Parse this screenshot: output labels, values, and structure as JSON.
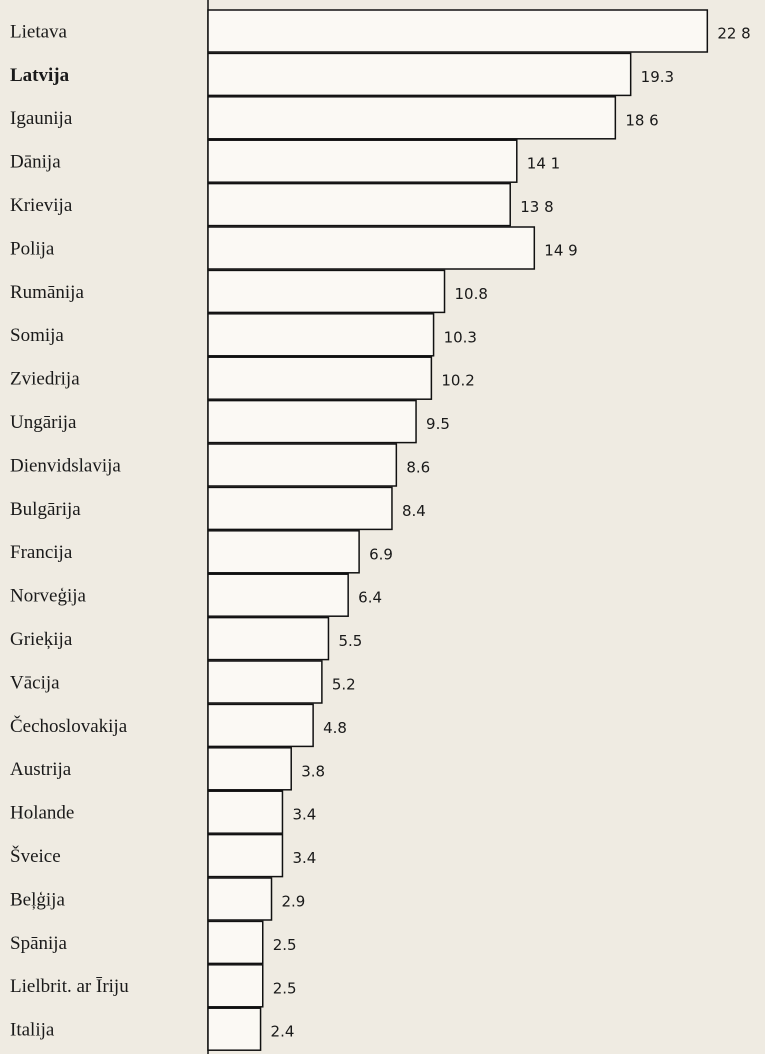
{
  "chart_data": {
    "type": "bar",
    "categories": [
      "Lietava",
      "Latvija",
      "Igaunija",
      "Dānija",
      "Krievija",
      "Polija",
      "Rumānija",
      "Somija",
      "Zviedrija",
      "Ungārija",
      "Dienvidslavija",
      "Bulgārija",
      "Francija",
      "Norveģija",
      "Grieķija",
      "Vācija",
      "Čechoslovakija",
      "Austrija",
      "Holande",
      "Šveice",
      "Beļģija",
      "Spānija",
      "Lielbrit. ar Īriju",
      "Italija"
    ],
    "values": [
      22.8,
      19.3,
      18.6,
      14.1,
      13.8,
      14.9,
      10.8,
      10.3,
      10.2,
      9.5,
      8.6,
      8.4,
      6.9,
      6.4,
      5.5,
      5.2,
      4.8,
      3.8,
      3.4,
      3.4,
      2.9,
      2.5,
      2.5,
      2.4
    ],
    "value_labels": [
      "22 8",
      "19.3",
      "18 6",
      "14 1",
      "13 8",
      "14 9",
      "10.8",
      "10.3",
      "10.2",
      "9.5",
      "8.6",
      "8.4",
      "6.9",
      "6.4",
      "5.5",
      "5.2",
      "4.8",
      "3.8",
      "3.4",
      "3.4",
      "2.9",
      "2.5",
      "2.5",
      "2.4"
    ],
    "color": "#fbf9f4"
  }
}
